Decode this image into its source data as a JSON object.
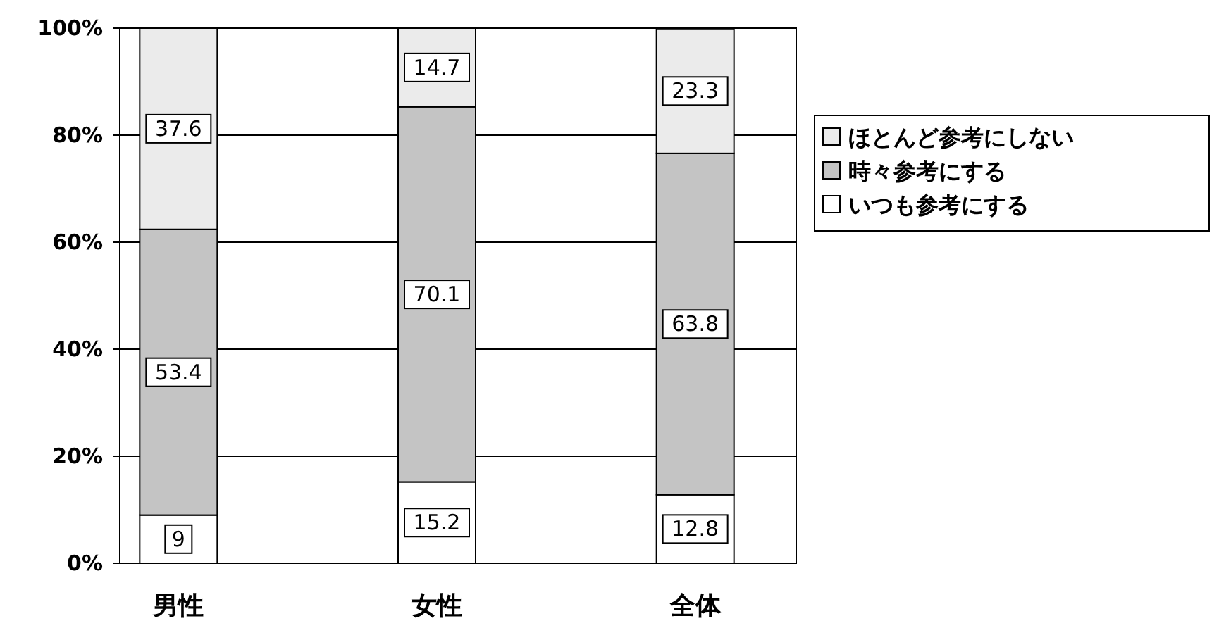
{
  "chart_data": {
    "type": "bar",
    "stacked": true,
    "categories": [
      "男性",
      "女性",
      "全体"
    ],
    "series": [
      {
        "name": "いつも参考にする",
        "color": "#ffffff",
        "values": [
          9,
          15.2,
          12.8
        ]
      },
      {
        "name": "時々参考にする",
        "color": "#c4c4c4",
        "values": [
          53.4,
          70.1,
          63.8
        ]
      },
      {
        "name": "ほとんど参考にしない",
        "color": "#ebebeb",
        "values": [
          37.6,
          14.7,
          23.3
        ]
      }
    ],
    "ylim": [
      0,
      100
    ],
    "yticks": [
      {
        "value": 0,
        "label": "0%"
      },
      {
        "value": 20,
        "label": "20%"
      },
      {
        "value": 40,
        "label": "40%"
      },
      {
        "value": 60,
        "label": "60%"
      },
      {
        "value": 80,
        "label": "80%"
      },
      {
        "value": 100,
        "label": "100%"
      }
    ],
    "grid": "y",
    "legend": "right",
    "data_labels": true
  }
}
